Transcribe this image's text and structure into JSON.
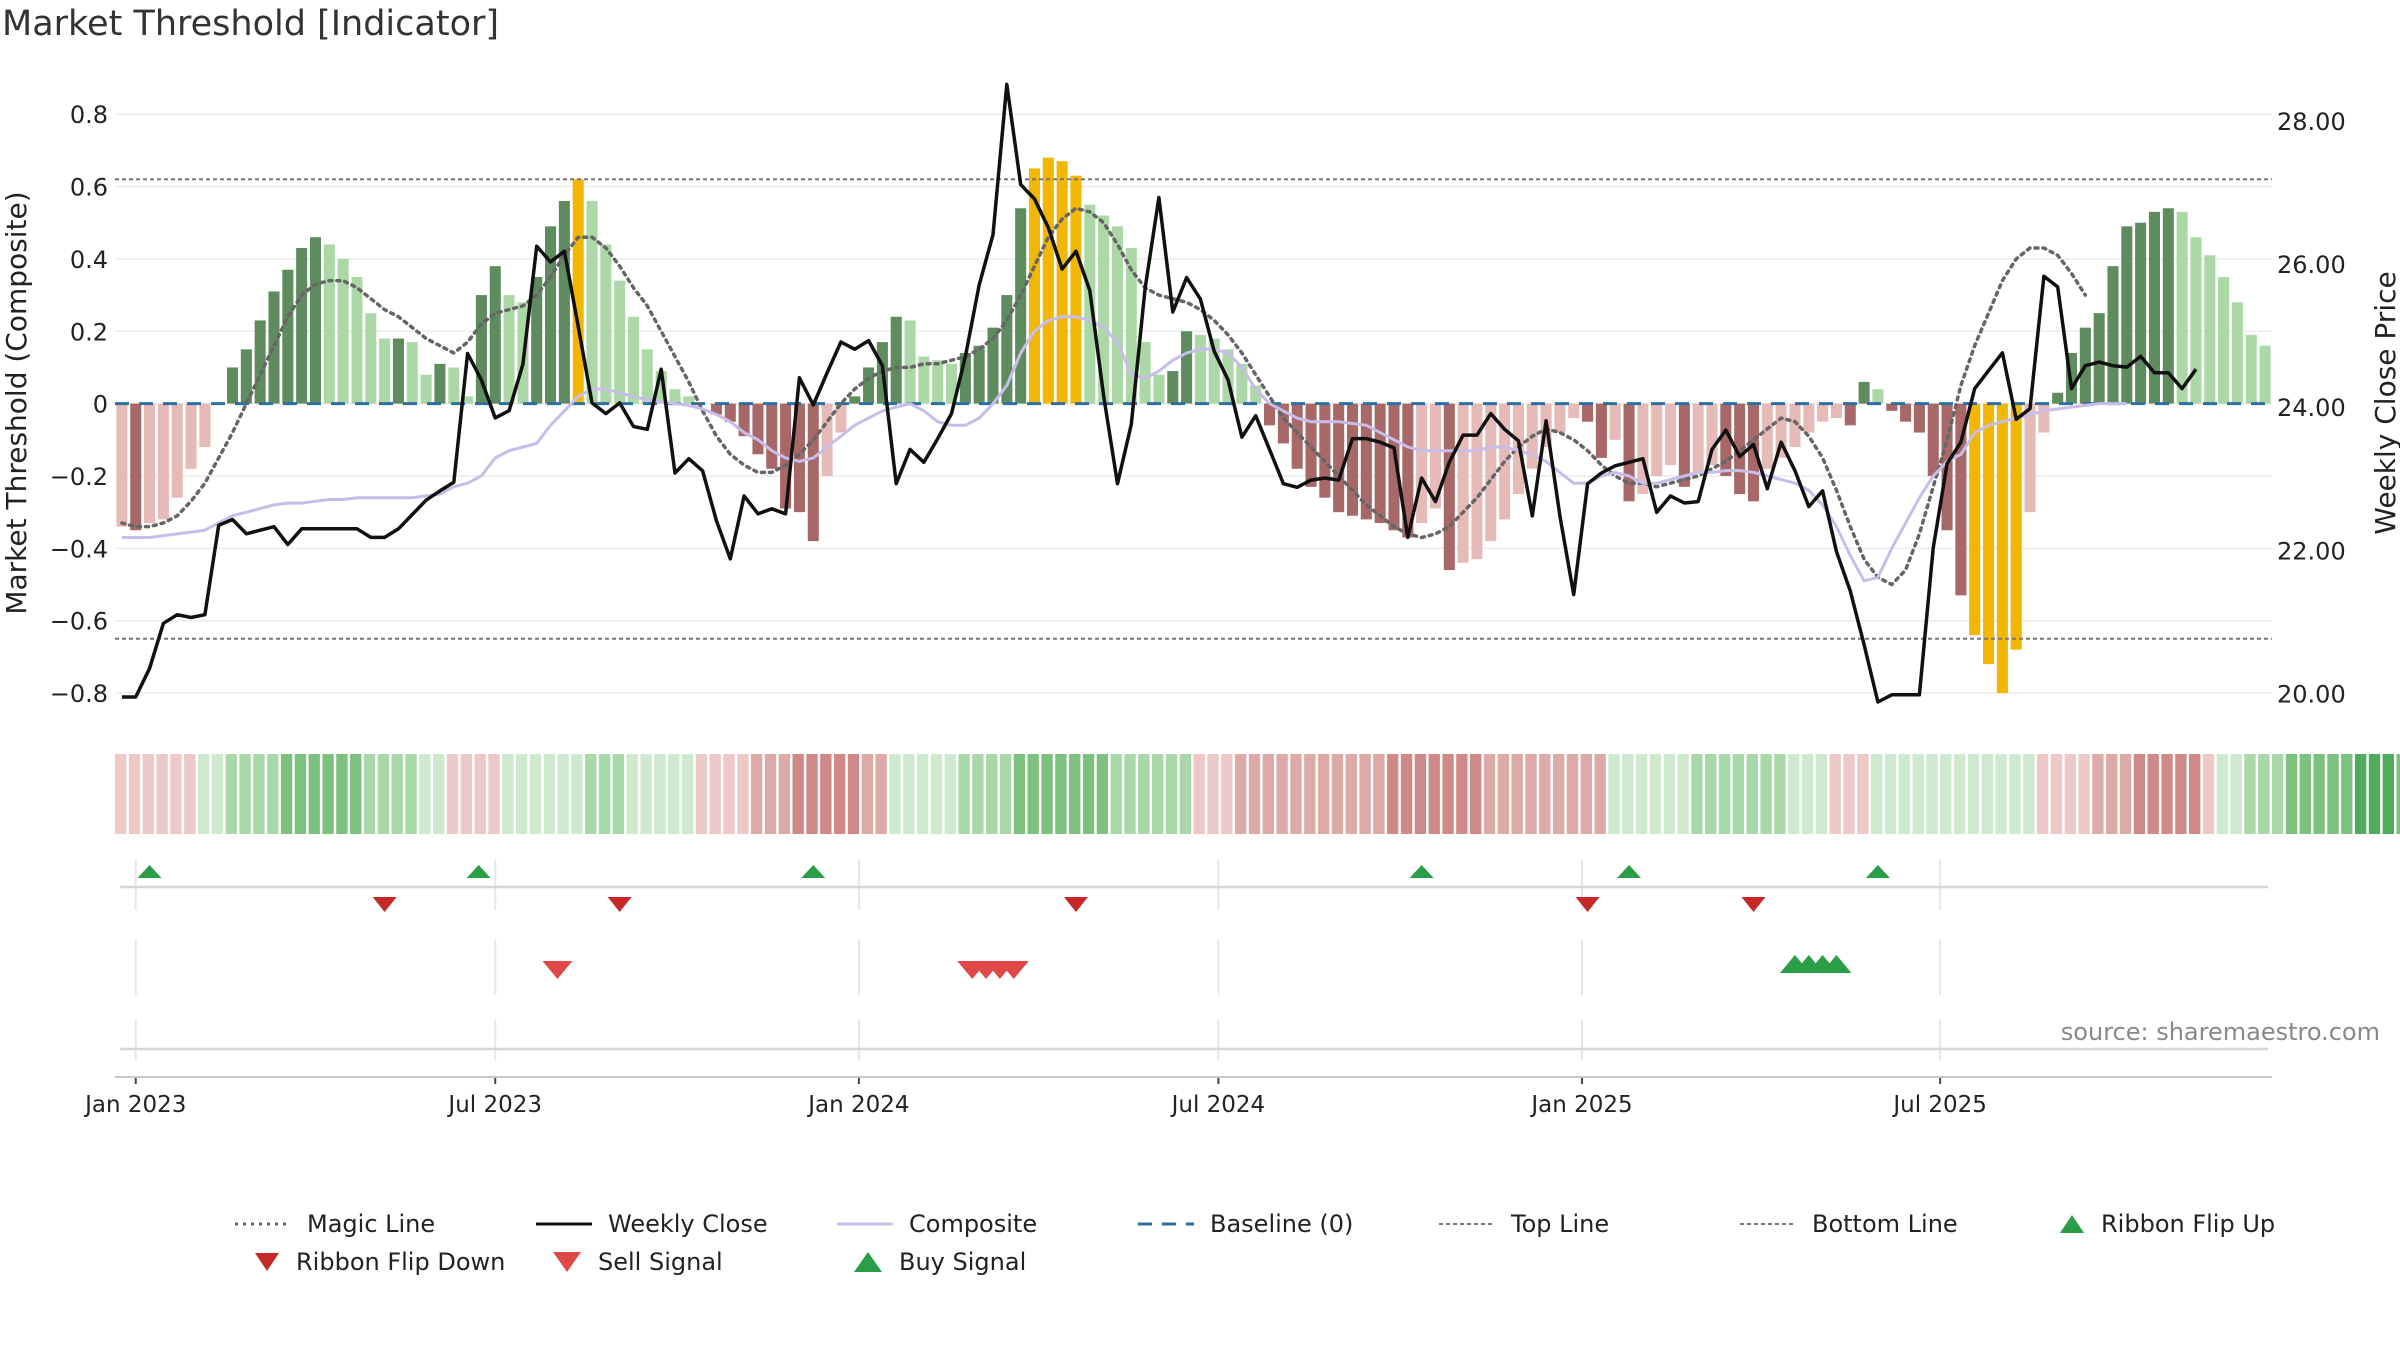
{
  "chart_title": "Market Threshold [Indicator]",
  "source_note": "source: sharemaestro.com",
  "colors": {
    "bull_dark": "#5e8c5e",
    "bull_light": "#acd8a8",
    "bear_dark": "#a86868",
    "bear_light": "#e6bab6",
    "extreme": "#f2b705",
    "weekly_close": "#111111",
    "composite_line": "#c8bde8",
    "magic_line": "#666666",
    "baseline": "#2f6fa0",
    "threshold_lines": "#777777",
    "buy": "#2a9d47",
    "sell": "#d23c3c"
  },
  "chart_data": {
    "type": "bar",
    "title": "Market Threshold [Indicator]",
    "ylabel": "Market Threshold (Composite)",
    "y2label": "Weekly Close Price",
    "ylim": [
      -0.88,
      0.9
    ],
    "y2lim": [
      19.6,
      28.6
    ],
    "yticks": [
      "0.8",
      "0.6",
      "0.4",
      "0.2",
      "0",
      "−0.2",
      "−0.4",
      "−0.6",
      "−0.8"
    ],
    "ytick_values": [
      0.8,
      0.6,
      0.4,
      0.2,
      0,
      -0.2,
      -0.4,
      -0.6,
      -0.8
    ],
    "y2ticks": [
      "28.00",
      "26.00",
      "24.00",
      "22.00",
      "20.00"
    ],
    "y2tick_values": [
      28,
      26,
      24,
      22,
      20
    ],
    "x_start_week": -1,
    "xticks": [
      {
        "label": "Jan 2023",
        "week": 0
      },
      {
        "label": "Jul 2023",
        "week": 26
      },
      {
        "label": "Jan 2024",
        "week": 52.3
      },
      {
        "label": "Jul 2024",
        "week": 78.3
      },
      {
        "label": "Jan 2025",
        "week": 104.6
      },
      {
        "label": "Jul 2025",
        "week": 130.5
      }
    ],
    "top_line": 0.62,
    "bottom_line": -0.65,
    "baseline": 0,
    "series": [
      {
        "name": "Composite (histogram)",
        "kind": "bar",
        "values": [
          -0.34,
          -0.35,
          -0.33,
          -0.32,
          -0.26,
          -0.18,
          -0.12,
          0,
          0.1,
          0.15,
          0.23,
          0.31,
          0.37,
          0.43,
          0.46,
          0.44,
          0.4,
          0.35,
          0.25,
          0.18,
          0.18,
          0.17,
          0.08,
          0.11,
          0.1,
          0.02,
          0.3,
          0.38,
          0.3,
          0.28,
          0.35,
          0.49,
          0.56,
          0.62,
          0.56,
          0.44,
          0.34,
          0.24,
          0.15,
          0.09,
          0.04,
          0.02,
          0,
          -0.03,
          -0.05,
          -0.09,
          -0.14,
          -0.18,
          -0.29,
          -0.3,
          -0.38,
          -0.2,
          -0.08,
          0.02,
          0.1,
          0.17,
          0.24,
          0.23,
          0.13,
          0.12,
          0.11,
          0.14,
          0.16,
          0.21,
          0.3,
          0.54,
          0.65,
          0.68,
          0.67,
          0.63,
          0.55,
          0.52,
          0.49,
          0.43,
          0.17,
          0.08,
          0.09,
          0.2,
          0.19,
          0.18,
          0.15,
          0.11,
          0.05,
          -0.06,
          -0.11,
          -0.18,
          -0.23,
          -0.26,
          -0.3,
          -0.31,
          -0.32,
          -0.33,
          -0.35,
          -0.37,
          -0.33,
          -0.29,
          -0.46,
          -0.44,
          -0.43,
          -0.38,
          -0.32,
          -0.25,
          -0.18,
          -0.12,
          -0.08,
          -0.04,
          -0.05,
          -0.15,
          -0.1,
          -0.27,
          -0.25,
          -0.2,
          -0.17,
          -0.23,
          -0.19,
          -0.17,
          -0.2,
          -0.25,
          -0.27,
          -0.18,
          -0.15,
          -0.12,
          -0.08,
          -0.05,
          -0.04,
          -0.06,
          0.06,
          0.04,
          -0.02,
          -0.05,
          -0.08,
          -0.2,
          -0.35,
          -0.53,
          -0.64,
          -0.72,
          -0.8,
          -0.68,
          -0.3,
          -0.08,
          0.03,
          0.14,
          0.21,
          0.25,
          0.38,
          0.49,
          0.5,
          0.53,
          0.54,
          0.53,
          0.46,
          0.41,
          0.35,
          0.28,
          0.19,
          0.16
        ]
      },
      {
        "name": "Weekly Close",
        "kind": "line",
        "axis": "right",
        "values": [
          19.95,
          19.95,
          20.35,
          20.98,
          21.1,
          21.06,
          21.1,
          22.35,
          22.43,
          22.23,
          22.28,
          22.33,
          22.08,
          22.3,
          22.3,
          22.3,
          22.3,
          22.3,
          22.18,
          22.18,
          22.3,
          22.5,
          22.7,
          22.83,
          22.95,
          24.75,
          24.38,
          23.85,
          23.95,
          24.6,
          26.25,
          26.03,
          26.18,
          25.13,
          24.06,
          23.91,
          24.06,
          23.73,
          23.69,
          24.53,
          23.08,
          23.28,
          23.11,
          22.41,
          21.88,
          22.76,
          22.51,
          22.58,
          22.51,
          24.41,
          24.03,
          24.48,
          24.91,
          24.81,
          24.93,
          24.58,
          22.93,
          23.41,
          23.23,
          23.56,
          23.91,
          24.71,
          25.71,
          26.41,
          28.51,
          27.11,
          26.91,
          26.51,
          25.93,
          26.18,
          25.63,
          24.16,
          22.93,
          23.76,
          25.66,
          26.93,
          25.33,
          25.81,
          25.51,
          24.78,
          24.38,
          23.58,
          23.88,
          23.41,
          22.93,
          22.88,
          22.98,
          23.01,
          22.98,
          23.56,
          23.56,
          23.51,
          23.43,
          22.18,
          23.01,
          22.68,
          23.23,
          23.61,
          23.61,
          23.91,
          23.69,
          23.53,
          22.48,
          23.81,
          22.48,
          21.38,
          22.93,
          23.08,
          23.18,
          23.23,
          23.28,
          22.53,
          22.76,
          22.66,
          22.68,
          23.41,
          23.68,
          23.31,
          23.48,
          22.86,
          23.51,
          23.11,
          22.61,
          22.83,
          21.98,
          21.43,
          20.68,
          19.88,
          19.98,
          19.98,
          19.98,
          22.03,
          23.21,
          23.51,
          24.26,
          24.51,
          24.76,
          23.83,
          23.98,
          25.83,
          25.68,
          24.26,
          24.58,
          24.63,
          24.58,
          24.56,
          24.71,
          24.48,
          24.48,
          24.26,
          24.53
        ]
      },
      {
        "name": "Composite",
        "kind": "line",
        "values": [
          -0.37,
          -0.37,
          -0.37,
          -0.365,
          -0.36,
          -0.355,
          -0.35,
          -0.33,
          -0.31,
          -0.3,
          -0.29,
          -0.28,
          -0.275,
          -0.275,
          -0.27,
          -0.265,
          -0.265,
          -0.26,
          -0.26,
          -0.26,
          -0.26,
          -0.26,
          -0.255,
          -0.25,
          -0.23,
          -0.22,
          -0.2,
          -0.15,
          -0.13,
          -0.12,
          -0.11,
          -0.06,
          -0.02,
          0.02,
          0.04,
          0.04,
          0.03,
          0.02,
          0.01,
          0.005,
          0,
          -0.005,
          -0.015,
          -0.03,
          -0.05,
          -0.08,
          -0.1,
          -0.13,
          -0.15,
          -0.16,
          -0.15,
          -0.12,
          -0.09,
          -0.06,
          -0.04,
          -0.02,
          -0.01,
          0,
          -0.02,
          -0.05,
          -0.06,
          -0.06,
          -0.04,
          0,
          0.05,
          0.14,
          0.2,
          0.23,
          0.24,
          0.24,
          0.23,
          0.21,
          0.17,
          0.08,
          0.07,
          0.09,
          0.12,
          0.14,
          0.15,
          0.15,
          0.14,
          0.1,
          0.04,
          0,
          -0.02,
          -0.04,
          -0.05,
          -0.05,
          -0.05,
          -0.055,
          -0.06,
          -0.08,
          -0.1,
          -0.12,
          -0.13,
          -0.13,
          -0.13,
          -0.13,
          -0.13,
          -0.12,
          -0.12,
          -0.13,
          -0.14,
          -0.16,
          -0.19,
          -0.22,
          -0.22,
          -0.2,
          -0.19,
          -0.2,
          -0.22,
          -0.22,
          -0.21,
          -0.2,
          -0.19,
          -0.19,
          -0.185,
          -0.185,
          -0.19,
          -0.2,
          -0.21,
          -0.22,
          -0.24,
          -0.28,
          -0.34,
          -0.42,
          -0.49,
          -0.48,
          -0.4,
          -0.33,
          -0.26,
          -0.2,
          -0.16,
          -0.14,
          -0.08,
          -0.06,
          -0.05,
          -0.04,
          -0.03,
          -0.02,
          -0.015,
          -0.01,
          -0.005,
          0,
          0,
          0
        ]
      },
      {
        "name": "Magic Line",
        "kind": "line",
        "style": "dotted",
        "values": [
          -0.33,
          -0.34,
          -0.34,
          -0.33,
          -0.31,
          -0.27,
          -0.22,
          -0.15,
          -0.08,
          0,
          0.08,
          0.16,
          0.24,
          0.3,
          0.33,
          0.34,
          0.34,
          0.32,
          0.29,
          0.26,
          0.24,
          0.21,
          0.18,
          0.16,
          0.14,
          0.17,
          0.22,
          0.25,
          0.26,
          0.27,
          0.3,
          0.35,
          0.41,
          0.46,
          0.46,
          0.43,
          0.38,
          0.32,
          0.27,
          0.2,
          0.13,
          0.06,
          -0.02,
          -0.09,
          -0.14,
          -0.17,
          -0.19,
          -0.19,
          -0.17,
          -0.14,
          -0.1,
          -0.05,
          0,
          0.04,
          0.07,
          0.09,
          0.1,
          0.1,
          0.11,
          0.11,
          0.12,
          0.13,
          0.15,
          0.18,
          0.23,
          0.3,
          0.38,
          0.46,
          0.51,
          0.54,
          0.53,
          0.5,
          0.44,
          0.37,
          0.32,
          0.3,
          0.29,
          0.28,
          0.26,
          0.23,
          0.19,
          0.14,
          0.08,
          0.02,
          -0.04,
          -0.08,
          -0.12,
          -0.16,
          -0.2,
          -0.24,
          -0.28,
          -0.31,
          -0.34,
          -0.36,
          -0.37,
          -0.36,
          -0.34,
          -0.3,
          -0.26,
          -0.21,
          -0.16,
          -0.12,
          -0.09,
          -0.07,
          -0.08,
          -0.1,
          -0.13,
          -0.17,
          -0.2,
          -0.22,
          -0.22,
          -0.23,
          -0.22,
          -0.21,
          -0.2,
          -0.18,
          -0.16,
          -0.13,
          -0.1,
          -0.07,
          -0.04,
          -0.05,
          -0.09,
          -0.15,
          -0.24,
          -0.34,
          -0.43,
          -0.48,
          -0.5,
          -0.46,
          -0.36,
          -0.23,
          -0.1,
          0.05,
          0.16,
          0.25,
          0.34,
          0.4,
          0.43,
          0.43,
          0.41,
          0.36,
          0.3
        ]
      }
    ],
    "ribbon": [
      -1,
      -1,
      -1,
      -1,
      -1,
      -1,
      1,
      1,
      2,
      2,
      2,
      2,
      3,
      3,
      3,
      3,
      3,
      3,
      2,
      2,
      2,
      2,
      1,
      1,
      -1,
      -1,
      -1,
      -1,
      1,
      1,
      1,
      1,
      1,
      1,
      2,
      2,
      2,
      1,
      1,
      1,
      1,
      1,
      -1,
      -1,
      -1,
      -1,
      -2,
      -2,
      -2,
      -3,
      -3,
      -3,
      -3,
      -3,
      -2,
      -2,
      1,
      1,
      1,
      1,
      1,
      2,
      2,
      2,
      2,
      3,
      3,
      3,
      3,
      3,
      3,
      3,
      2,
      2,
      2,
      2,
      2,
      2,
      -1,
      -1,
      -1,
      -2,
      -2,
      -2,
      -2,
      -2,
      -2,
      -2,
      -2,
      -2,
      -2,
      -2,
      -3,
      -3,
      -3,
      -3,
      -3,
      -3,
      -3,
      -2,
      -2,
      -2,
      -2,
      -2,
      -2,
      -2,
      -2,
      -2,
      1,
      1,
      1,
      1,
      1,
      1,
      2,
      2,
      2,
      2,
      2,
      2,
      2,
      1,
      1,
      1,
      -1,
      -1,
      -1,
      1,
      1,
      1,
      1,
      1,
      1,
      1,
      1,
      1,
      1,
      1,
      1,
      -1,
      -1,
      -1,
      -1,
      -2,
      -2,
      -2,
      -3,
      -3,
      -3,
      -3,
      -3,
      -1,
      1,
      1,
      2,
      2,
      2,
      3,
      3,
      3,
      3,
      3,
      4,
      4,
      4,
      3,
      3,
      2,
      2,
      1
    ],
    "ribbon_flips": [
      {
        "week": 1,
        "dir": "up"
      },
      {
        "week": 18,
        "dir": "down"
      },
      {
        "week": 24.8,
        "dir": "up"
      },
      {
        "week": 35,
        "dir": "down"
      },
      {
        "week": 49,
        "dir": "up"
      },
      {
        "week": 68,
        "dir": "down"
      },
      {
        "week": 93,
        "dir": "up"
      },
      {
        "week": 105,
        "dir": "down"
      },
      {
        "week": 108,
        "dir": "up"
      },
      {
        "week": 117,
        "dir": "down"
      },
      {
        "week": 126,
        "dir": "up"
      }
    ],
    "signals": [
      {
        "week": 30.5,
        "type": "sell"
      },
      {
        "week": 60.5,
        "type": "sell"
      },
      {
        "week": 61.5,
        "type": "sell"
      },
      {
        "week": 62.5,
        "type": "sell"
      },
      {
        "week": 63.5,
        "type": "sell"
      },
      {
        "week": 120,
        "type": "buy"
      },
      {
        "week": 121,
        "type": "buy"
      },
      {
        "week": 122,
        "type": "buy"
      },
      {
        "week": 123,
        "type": "buy"
      }
    ]
  },
  "legend": {
    "magic_line": "Magic Line",
    "weekly_close": "Weekly Close",
    "composite": "Composite",
    "baseline": "Baseline (0)",
    "top_line": "Top Line",
    "bottom_line": "Bottom Line",
    "ribbon_flip_up": "Ribbon Flip Up",
    "ribbon_flip_down": "Ribbon Flip Down",
    "sell_signal": "Sell Signal",
    "buy_signal": "Buy Signal"
  }
}
